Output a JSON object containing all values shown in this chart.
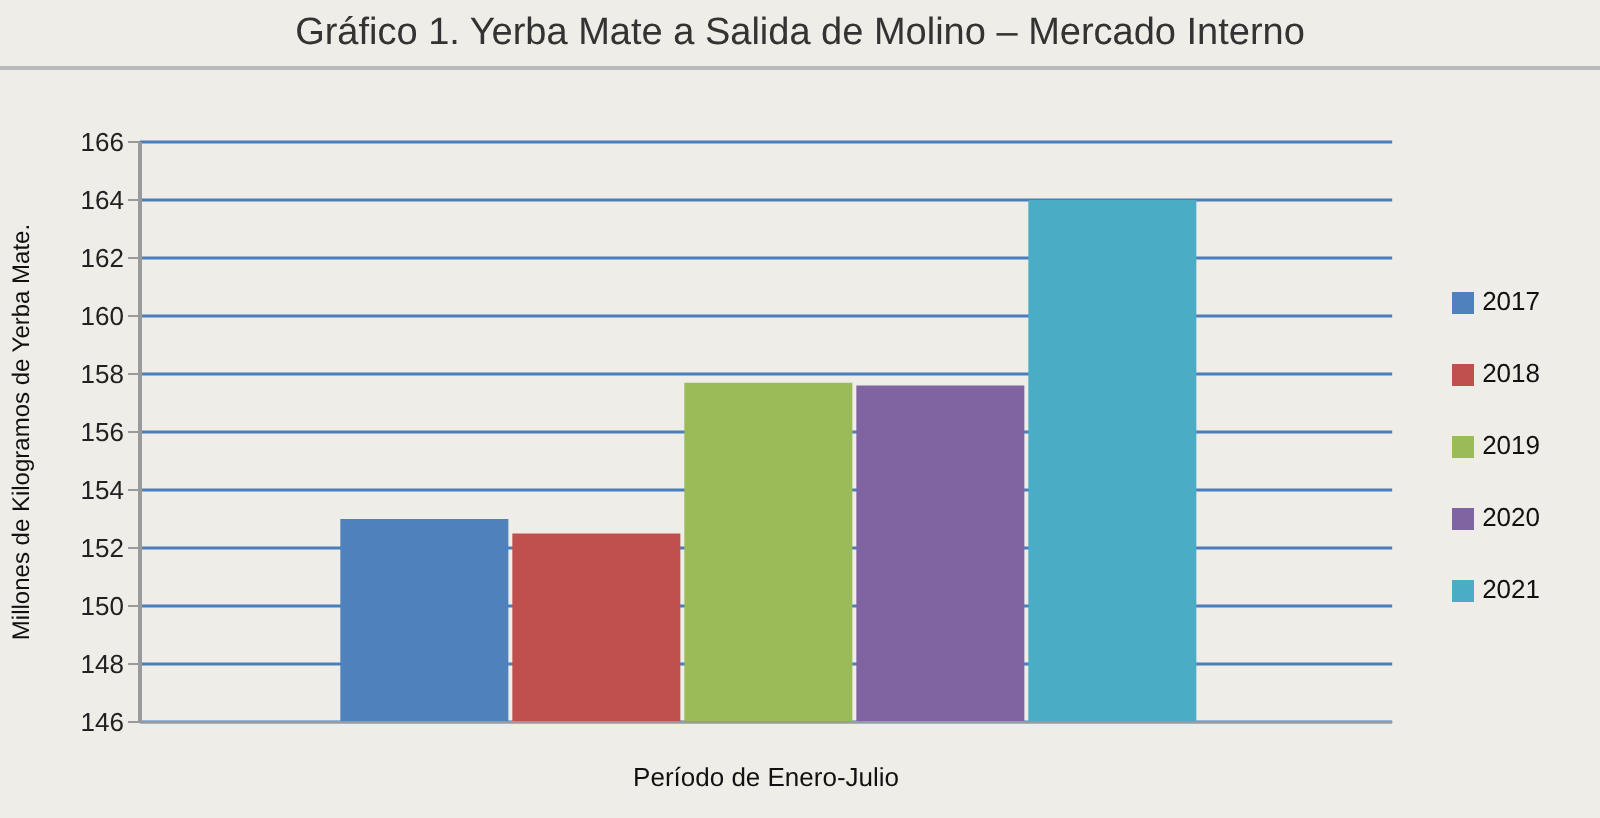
{
  "chart_data": {
    "type": "bar",
    "title": "Gráfico 1. Yerba Mate a Salida de Molino – Mercado Interno",
    "xlabel": "Período de Enero-Julio",
    "ylabel": "Millones de Kilogramos de Yerba Mate.",
    "categories": [
      null
    ],
    "series": [
      {
        "name": "2017",
        "color": "#4f81bd",
        "values": [
          153.0
        ]
      },
      {
        "name": "2018",
        "color": "#c0504d",
        "values": [
          152.5
        ]
      },
      {
        "name": "2019",
        "color": "#9bbb59",
        "values": [
          157.7
        ]
      },
      {
        "name": "2020",
        "color": "#8064a2",
        "values": [
          157.6
        ]
      },
      {
        "name": "2021",
        "color": "#4bacc6",
        "values": [
          164.0
        ]
      }
    ],
    "ylim": [
      146,
      166
    ],
    "yticks": [
      146,
      148,
      150,
      152,
      154,
      156,
      158,
      160,
      162,
      164,
      166
    ],
    "grid": "y",
    "legend": "right"
  }
}
